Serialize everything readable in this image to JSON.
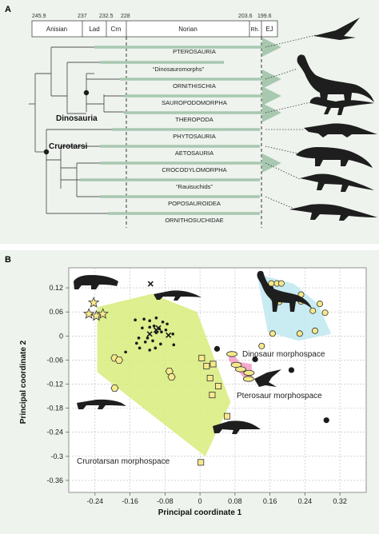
{
  "panel_a": {
    "label": "A",
    "tick_values": [
      "245.9",
      "237",
      "232.5",
      "228",
      "203.6",
      "199.6"
    ],
    "stages": [
      "Anisian",
      "Lad",
      "Crn",
      "Norian",
      "Rh.",
      "EJ"
    ],
    "clade_labels": {
      "dinosauria": "Dinosauria",
      "crurotarsi": "Crurotarsi"
    },
    "taxa": [
      "PTEROSAURIA",
      "“Dinosauromorphs”",
      "ORNITHISCHIA",
      "SAUROPODOMORPHA",
      "THEROPODA",
      "PHYTOSAURIA",
      "AETOSAURIA",
      "CROCODYLOMORPHA",
      "“Rauisuchids”",
      "POPOSAUROIDEA",
      "ORNITHOSUCHIDAE"
    ],
    "colors": {
      "range_bar": "#a8c8b0",
      "tree_line": "#555555",
      "silhouette": "#1e1e1e"
    }
  },
  "panel_b": {
    "label": "B",
    "x_title": "Principal coordinate 1",
    "y_title": "Principal coordinate 2",
    "x_ticks": [
      "-0.24",
      "-0.16",
      "-0.08",
      "0",
      "0.08",
      "0.16",
      "0.24",
      "0.32"
    ],
    "y_ticks": [
      "0.12",
      "0.06",
      "0",
      "-0.06",
      "-0.12",
      "-0.18",
      "-0.24",
      "-0.3",
      "-0.36"
    ],
    "region_labels": {
      "crurotarsan": "Crurotarsan morphospace",
      "dinosaur": "Dinosaur morphospace",
      "pterosaur": "Pterosaur morphospace"
    },
    "colors": {
      "crurotarsan_fill": "#d7ec7a",
      "dinosaur_fill": "#bfe8f0",
      "pterosaur_fill": "#f39cc4",
      "marker_fill": "#f6e98a",
      "dot": "#1a1a1a"
    }
  },
  "chart_data": {
    "type": "scatter",
    "xlim": [
      -0.3,
      0.38
    ],
    "ylim": [
      -0.39,
      0.17
    ],
    "grid": true,
    "series": [
      {
        "marker": "star",
        "x": [
          -0.243,
          -0.254,
          -0.237,
          -0.222
        ],
        "y": [
          0.083,
          0.055,
          0.05,
          0.055
        ]
      },
      {
        "marker": "hexagon",
        "x": [
          -0.195,
          -0.185,
          -0.07,
          -0.065,
          -0.195
        ],
        "y": [
          -0.055,
          -0.06,
          -0.088,
          -0.102,
          -0.13
        ]
      },
      {
        "marker": "square",
        "x": [
          0.004,
          0.015,
          0.03,
          0.023,
          0.042,
          0.028,
          0.062,
          0.002
        ],
        "y": [
          -0.055,
          -0.075,
          -0.07,
          -0.105,
          -0.125,
          -0.147,
          -0.2,
          -0.315
        ]
      },
      {
        "marker": "ellipse",
        "x": [
          0.073,
          0.083,
          0.093,
          0.112,
          0.111
        ],
        "y": [
          -0.045,
          -0.072,
          -0.083,
          -0.092,
          -0.107
        ]
      },
      {
        "marker": "circle-open",
        "x": [
          0.163,
          0.176,
          0.186,
          0.168,
          0.177,
          0.181,
          0.231,
          0.231,
          0.274,
          0.258,
          0.286,
          0.263,
          0.228,
          0.166,
          0.141
        ],
        "y": [
          0.131,
          0.131,
          0.131,
          0.094,
          0.097,
          0.085,
          0.103,
          0.086,
          0.08,
          0.063,
          0.058,
          0.013,
          0.006,
          0.006,
          -0.025
        ]
      },
      {
        "marker": "circle-solid",
        "x": [
          0.162,
          0.039,
          0.126,
          0.209,
          0.289
        ],
        "y": [
          0.118,
          -0.032,
          -0.058,
          -0.085,
          -0.21
        ]
      },
      {
        "marker": "cross",
        "x": [
          -0.113,
          -0.115,
          -0.072,
          -0.095,
          -0.1
        ],
        "y": [
          0.13,
          0.005,
          0.002,
          0.02,
          0.015
        ]
      },
      {
        "marker": "dot",
        "x": [
          -0.148,
          -0.128,
          -0.115,
          -0.1,
          -0.085,
          -0.132,
          -0.115,
          -0.105,
          -0.093,
          -0.078,
          -0.075,
          -0.14,
          -0.12,
          -0.1,
          -0.088,
          -0.062,
          -0.125,
          -0.108,
          -0.09,
          -0.145,
          -0.115,
          -0.138,
          -0.102,
          -0.06,
          -0.17
        ],
        "y": [
          0.04,
          0.042,
          0.038,
          0.045,
          0.035,
          0.02,
          0.022,
          0.025,
          0.018,
          0.015,
          0.03,
          -0.005,
          -0.005,
          0.008,
          0.01,
          0.005,
          -0.015,
          -0.012,
          -0.02,
          -0.018,
          -0.035,
          -0.03,
          -0.03,
          -0.022,
          -0.04
        ]
      }
    ],
    "regions": [
      {
        "name": "crurotarsan",
        "polygon": [
          [
            -0.235,
            0.072
          ],
          [
            -0.11,
            0.105
          ],
          [
            -0.007,
            0.06
          ],
          [
            0.07,
            -0.165
          ],
          [
            0.012,
            -0.3
          ],
          [
            -0.235,
            -0.09
          ]
        ]
      },
      {
        "name": "dinosaur",
        "polygon": [
          [
            0.13,
            0.155
          ],
          [
            0.215,
            0.13
          ],
          [
            0.27,
            0.08
          ],
          [
            0.3,
            0.005
          ],
          [
            0.225,
            -0.012
          ],
          [
            0.155,
            0.01
          ]
        ]
      },
      {
        "name": "pterosaur",
        "polygon": [
          [
            0.07,
            -0.035
          ],
          [
            0.09,
            -0.065
          ],
          [
            0.118,
            -0.07
          ],
          [
            0.12,
            -0.11
          ],
          [
            0.105,
            -0.11
          ],
          [
            0.065,
            -0.06
          ]
        ]
      }
    ]
  }
}
